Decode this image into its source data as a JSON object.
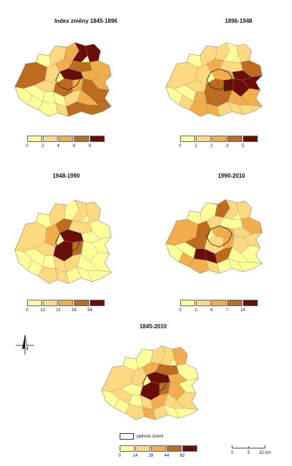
{
  "panels": [
    {
      "title": "Index změny 1845-1896",
      "ticks": [
        "0",
        "2",
        "4",
        "6",
        "9"
      ]
    },
    {
      "title": "1896-1948",
      "ticks": [
        "0",
        "1",
        "2",
        "3",
        "5"
      ]
    },
    {
      "title": "1948-1990",
      "ticks": [
        "0",
        "12",
        "21",
        "33",
        "54"
      ]
    },
    {
      "title": "1990-2010",
      "ticks": [
        "0",
        "2",
        "4",
        "7",
        "14"
      ]
    },
    {
      "title": "1845-2010",
      "ticks": [
        "0",
        "14",
        "28",
        "44",
        "62"
      ]
    }
  ],
  "palette": [
    "#ffff99",
    "#fed980",
    "#f3ae4c",
    "#bd6b1d",
    "#6b0d06"
  ],
  "core_legend_label": "jádrové území",
  "scalebar": {
    "ticks": [
      "0",
      "5",
      "10 km"
    ]
  },
  "north_arrow": "north-arrow-icon"
}
